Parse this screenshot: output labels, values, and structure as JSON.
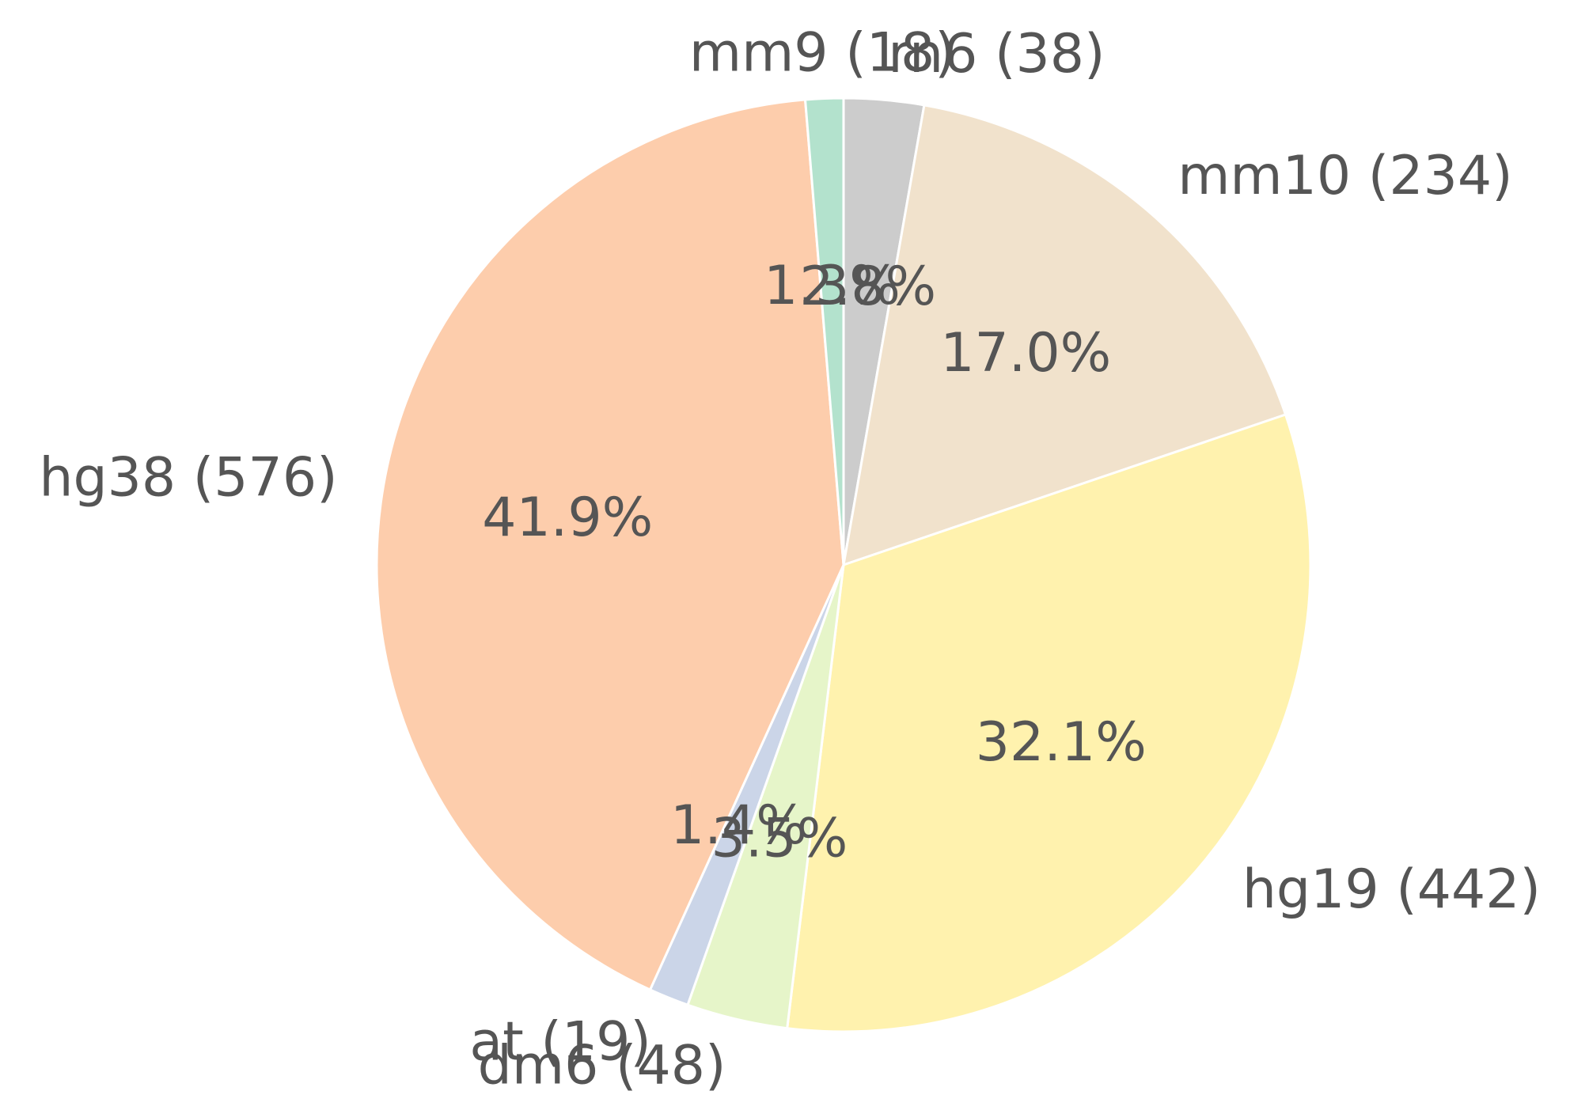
{
  "chart_data": {
    "type": "pie",
    "start_angle": "top, clockwise",
    "slices": [
      {
        "label": "rn6 (38)",
        "value": 38,
        "percent_label": "2.8%",
        "color": "#cccccc"
      },
      {
        "label": "mm10 (234)",
        "value": 234,
        "percent_label": "17.0%",
        "color": "#f1e2cc"
      },
      {
        "label": "hg19 (442)",
        "value": 442,
        "percent_label": "32.1%",
        "color": "#fff2ae"
      },
      {
        "label": "dm6 (48)",
        "value": 48,
        "percent_label": "3.5%",
        "color": "#e6f5c9"
      },
      {
        "label": "at (19)",
        "value": 19,
        "percent_label": "1.4%",
        "color": "#cbd5e8"
      },
      {
        "label": "hg38 (576)",
        "value": 576,
        "percent_label": "41.9%",
        "color": "#fdcdac"
      },
      {
        "label": "mm9 (18)",
        "value": 18,
        "percent_label": "1.3%",
        "color": "#b3e2cd"
      }
    ]
  }
}
